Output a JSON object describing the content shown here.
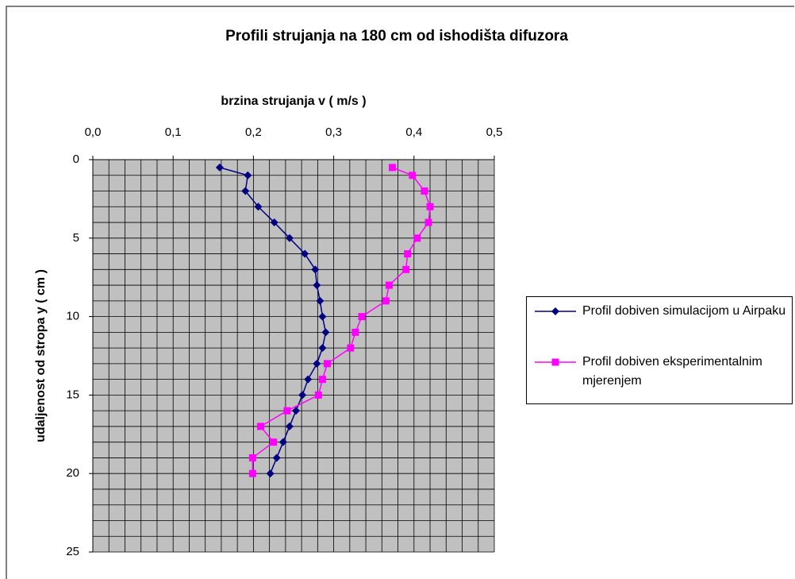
{
  "chart_data": {
    "type": "line",
    "title": "Profili strujanja na 180 cm od ishodišta difuzora",
    "x_label": "brzina strujanja v ( m/s )",
    "y_label": "udaljenost od stropa y ( cm )",
    "y": [
      0.5,
      1,
      2,
      3,
      4,
      5,
      6,
      7,
      8,
      9,
      10,
      11,
      12,
      13,
      14,
      15,
      16,
      17,
      18,
      19,
      20
    ],
    "series": [
      {
        "name": "Profil dobiven simulacijom u Airpaku",
        "color": "#000080",
        "marker": "diamond",
        "values": [
          0.158,
          0.193,
          0.19,
          0.206,
          0.226,
          0.245,
          0.264,
          0.277,
          0.279,
          0.283,
          0.286,
          0.29,
          0.286,
          0.279,
          0.268,
          0.261,
          0.253,
          0.245,
          0.237,
          0.229,
          0.221
        ]
      },
      {
        "name": "Profil dobiven eksperimentalnim mjerenjem",
        "color": "#ff00ff",
        "marker": "square",
        "values": [
          0.373,
          0.398,
          0.413,
          0.42,
          0.418,
          0.404,
          0.392,
          0.39,
          0.369,
          0.365,
          0.335,
          0.327,
          0.321,
          0.292,
          0.286,
          0.281,
          0.242,
          0.209,
          0.225,
          0.199,
          0.199
        ]
      }
    ],
    "xlim": [
      0,
      0.5
    ],
    "xticks": [
      {
        "value": 0,
        "label": "0,0"
      },
      {
        "value": 0.1,
        "label": "0,1"
      },
      {
        "value": 0.2,
        "label": "0,2"
      },
      {
        "value": 0.3,
        "label": "0,3"
      },
      {
        "value": 0.4,
        "label": "0,4"
      },
      {
        "value": 0.5,
        "label": "0,5"
      }
    ],
    "ylim": [
      0,
      25
    ],
    "y_inverted": true,
    "x_axis_position": "top",
    "yticks": [
      0,
      5,
      10,
      15,
      20,
      25
    ],
    "xgrid": [
      0.02,
      0.04,
      0.06,
      0.08,
      0.1,
      0.12,
      0.14,
      0.16,
      0.18,
      0.2,
      0.22,
      0.24,
      0.26,
      0.28,
      0.3,
      0.32,
      0.34,
      0.36,
      0.38,
      0.4,
      0.42,
      0.44,
      0.46,
      0.48,
      0.5
    ],
    "ygrid": [
      1,
      2,
      3,
      4,
      5,
      6,
      7,
      8,
      9,
      10,
      11,
      12,
      13,
      14,
      15,
      16,
      17,
      18,
      19,
      20,
      21,
      22,
      23,
      24,
      25
    ],
    "grid": true,
    "plot_background": "#c0c0c0",
    "legend": "right"
  }
}
